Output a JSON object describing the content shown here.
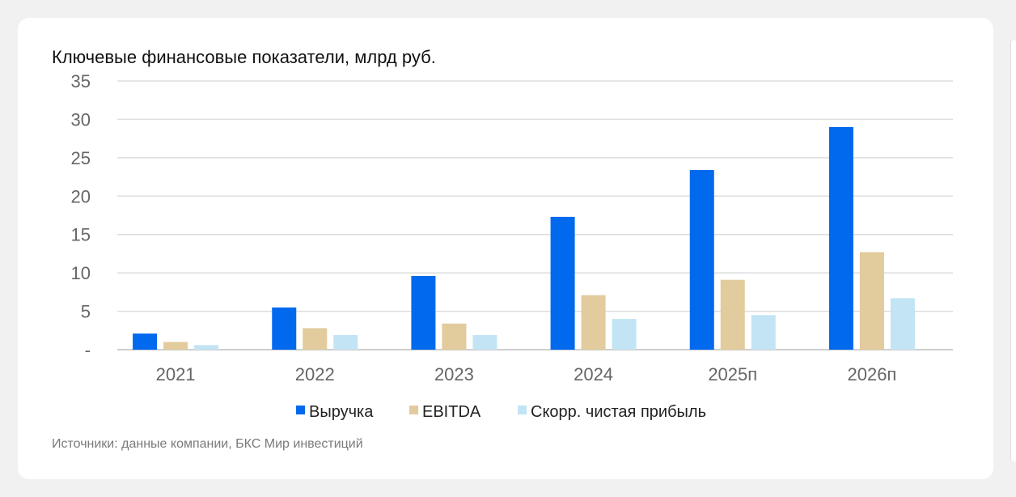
{
  "title": "Ключевые финансовые показатели, млрд руб.",
  "source": "Источники: данные компании, БКС Мир инвестиций",
  "chart_data": {
    "type": "bar",
    "title": "Ключевые финансовые показатели, млрд руб.",
    "categories": [
      "2021",
      "2022",
      "2023",
      "2024",
      "2025п",
      "2026п"
    ],
    "series": [
      {
        "name": "Выручка",
        "color": "#0069ee",
        "values": [
          2.1,
          5.5,
          9.6,
          17.3,
          23.4,
          29.0
        ]
      },
      {
        "name": "EBITDA",
        "color": "#e2cb9c",
        "values": [
          1.0,
          2.8,
          3.4,
          7.1,
          9.1,
          12.7
        ]
      },
      {
        "name": "Скорр. чистая прибыль",
        "color": "#c2e4f4",
        "values": [
          0.6,
          1.9,
          1.9,
          4.0,
          4.5,
          6.7
        ]
      }
    ],
    "yticks": [
      "-",
      "5",
      "10",
      "15",
      "20",
      "25",
      "30",
      "35"
    ],
    "ylim": [
      0,
      35
    ],
    "grid": true,
    "legend": "bottom"
  }
}
